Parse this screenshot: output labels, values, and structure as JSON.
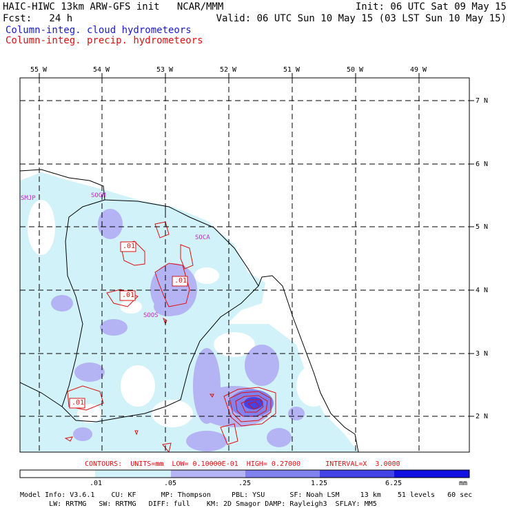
{
  "header": {
    "line1_left": "HAIC-HIWC 13km ARW-GFS init   NCAR/MMM",
    "line1_right": "Init: 06 UTC Sat 09 May 15",
    "line2_left": "Fcst:   24 h",
    "line2_right": "Valid: 06 UTC Sun 10 May 15 (03 LST Sun 10 May 15)",
    "field1": "Column-integ. cloud hydrometeors",
    "field2": "Column-integ. precip. hydrometeors"
  },
  "map": {
    "lon_labels": [
      "55 W",
      "54 W",
      "53 W",
      "52 W",
      "51 W",
      "50 W",
      "49 W"
    ],
    "lat_labels": [
      "7 N",
      "6 N",
      "5 N",
      "4 N",
      "3 N",
      "2 N"
    ],
    "stations": [
      "SMJP",
      "SOGM",
      "SOCA",
      "SOOS"
    ],
    "contour_labels": [
      ".01",
      ".01",
      ".01",
      ".01"
    ]
  },
  "contour_info": "CONTOURS:  UNITS=mm  LOW= 0.10000E-01  HIGH= 0.27000      INTERVAL=X  3.0000",
  "colorbar": {
    "labels": [
      ".01",
      ".05",
      ".25",
      "1.25",
      "6.25"
    ],
    "units": "mm",
    "colors": [
      "#ffffff",
      "#d2f2fa",
      "#b4b4f5",
      "#8080ee",
      "#4444e6",
      "#1010e0"
    ]
  },
  "footer": {
    "line1": "Model Info: V3.6.1    CU: KF      MP: Thompson     PBL: YSU      SF: Noah LSM     13 km    51 levels   60 sec",
    "line2": "       LW: RRTMG   SW: RRTMG   DIFF: full    KM: 2D Smagor DAMP: Rayleigh3  SFLAY: MM5"
  },
  "colors": {
    "cloud_light": "#d2f2fa",
    "cloud_mid": "#b4b4f5",
    "precip": "#dd1111",
    "station": "#cc22cc"
  }
}
